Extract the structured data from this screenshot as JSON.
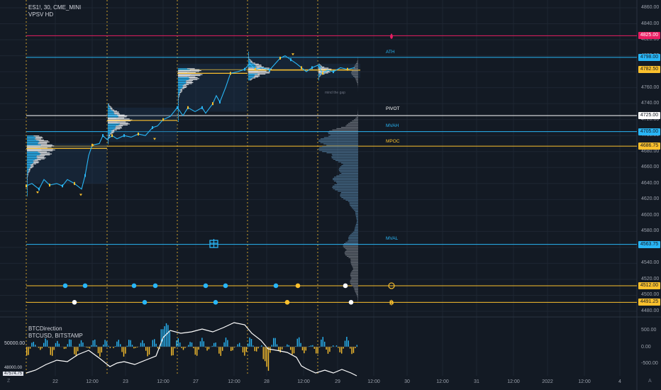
{
  "legend": {
    "symbol": "ES1!, 30, CME_MINI",
    "indicator": "VPSV HD",
    "sub_title": "BTCDirection",
    "sub_symbol": "BTCUSD, BITSTAMP"
  },
  "price_axis": {
    "labels": [
      "4860.00",
      "4840.00",
      "4820.00",
      "4800.00",
      "4780.00",
      "4760.00",
      "4740.00",
      "4720.00",
      "4700.00",
      "4680.00",
      "4660.00",
      "4640.00",
      "4620.00",
      "4600.00",
      "4580.00",
      "4560.00",
      "4540.00",
      "4520.00",
      "4500.00",
      "4480.00"
    ]
  },
  "price_boxes": [
    {
      "value": "4825.00",
      "bg": "#e91e63",
      "fg": "#ffffff"
    },
    {
      "value": "4798.00",
      "bg": "#29b6f6",
      "fg": "#131a24"
    },
    {
      "value": "4782.50",
      "bg": "#fbc02d",
      "fg": "#131a24"
    },
    {
      "value": "4725.00",
      "bg": "#ffffff",
      "fg": "#131a24"
    },
    {
      "value": "4705.00",
      "bg": "#29b6f6",
      "fg": "#131a24"
    },
    {
      "value": "4686.75",
      "bg": "#fbc02d",
      "fg": "#131a24"
    },
    {
      "value": "4563.75",
      "bg": "#29b6f6",
      "fg": "#131a24"
    },
    {
      "value": "4512.00",
      "bg": "#fbc02d",
      "fg": "#131a24"
    },
    {
      "value": "4491.25",
      "bg": "#fbc02d",
      "fg": "#131a24"
    }
  ],
  "level_tags": {
    "ath": "ATH",
    "pivot": "PIVOT",
    "mvah": "MVAH",
    "mpoc": "MPOC",
    "mval": "MVAL",
    "gap": "mind the gap"
  },
  "sub_axis": {
    "labels": [
      "500.00",
      "0.00",
      "-500.00"
    ],
    "left_label": "50000.00",
    "left_label2": "48000.00",
    "current": "47574.75"
  },
  "time_axis": {
    "labels": [
      "22",
      "12:00",
      "23",
      "12:00",
      "27",
      "12:00",
      "28",
      "12:00",
      "29",
      "12:00",
      "30",
      "12:00",
      "31",
      "12:00",
      "2022",
      "12:00",
      "4"
    ]
  },
  "corner_labels": {
    "left": "Z",
    "right": "A"
  },
  "icons": {
    "flame": "flame-icon",
    "gift": "gift-icon",
    "circle_coin": "coin-icon",
    "bitcoin": "bitcoin-icon"
  },
  "colors": {
    "background": "#131a24",
    "grid": "#1e2632",
    "blue": "#29b6f6",
    "gold": "#fbc02d",
    "pink": "#e91e63",
    "white": "#ffffff",
    "gray": "#7d8590"
  }
}
